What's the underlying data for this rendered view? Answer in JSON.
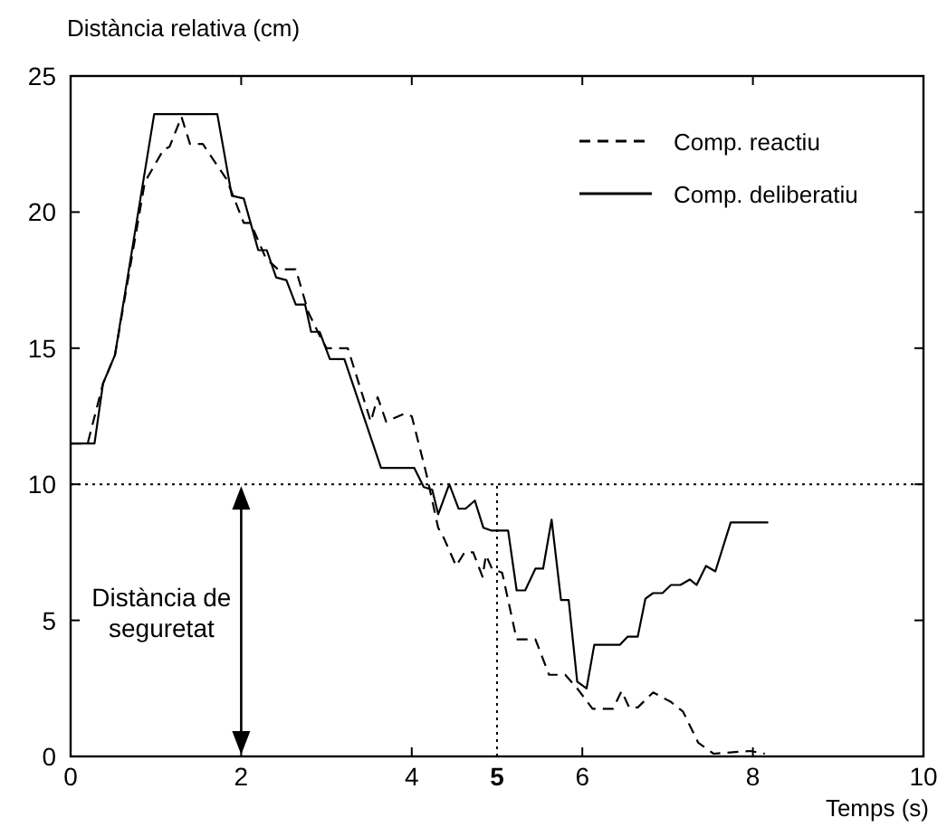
{
  "chart_data": {
    "type": "line",
    "ylabel": "Distància relativa (cm)",
    "xlabel": "Temps (s)",
    "xlim": [
      0,
      10
    ],
    "ylim": [
      0,
      25
    ],
    "xticks": [
      0,
      2,
      4,
      6,
      8,
      10
    ],
    "yticks": [
      0,
      5,
      10,
      15,
      20,
      25
    ],
    "grid": false,
    "legend": "top right",
    "marker": "none",
    "ref_lines": [
      {
        "axis": "y",
        "value": 10,
        "line_style": "dotted",
        "color": "#000000"
      },
      {
        "axis": "x",
        "value": 5,
        "label": "5",
        "line_style": "dotted",
        "color": "#000000"
      }
    ],
    "annotations": [
      "Distància de\nseguretat"
    ],
    "series": [
      {
        "name": "Comp. reactiu",
        "color": "#000000",
        "line_style": "dashed",
        "x": [
          0,
          0.2,
          0.38,
          0.52,
          0.87,
          1.09,
          1.16,
          1.3,
          1.4,
          1.55,
          1.83,
          2.03,
          2.11,
          2.29,
          2.43,
          2.64,
          2.79,
          2.93,
          3.0,
          3.25,
          3.46,
          3.52,
          3.6,
          3.7,
          3.92,
          4.0,
          4.17,
          4.31,
          4.38,
          4.52,
          4.62,
          4.72,
          4.83,
          4.87,
          4.94,
          5.06,
          5.23,
          5.45,
          5.61,
          5.8,
          5.94,
          6.12,
          6.36,
          6.46,
          6.55,
          6.65,
          6.83,
          7.04,
          7.18,
          7.36,
          7.54,
          7.97,
          8.14
        ],
        "values": [
          11.5,
          11.5,
          13.7,
          14.75,
          21.1,
          22.3,
          22.4,
          23.5,
          22.5,
          22.5,
          21.2,
          19.6,
          19.6,
          18.3,
          17.9,
          17.9,
          16.3,
          15.4,
          15.0,
          15.0,
          12.9,
          12.3,
          13.2,
          12.3,
          12.6,
          12.5,
          10.4,
          8.4,
          8.0,
          7.0,
          7.5,
          7.5,
          6.6,
          7.4,
          6.9,
          6.75,
          4.3,
          4.3,
          3.0,
          3.0,
          2.5,
          1.75,
          1.75,
          2.4,
          1.8,
          1.8,
          2.35,
          2.0,
          1.65,
          0.5,
          0.1,
          0.2,
          0.1
        ]
      },
      {
        "name": "Comp. deliberatiu",
        "color": "#000000",
        "line_style": "solid",
        "x": [
          0,
          0.28,
          0.38,
          0.52,
          0.98,
          1.72,
          1.89,
          2.03,
          2.2,
          2.3,
          2.41,
          2.53,
          2.64,
          2.75,
          2.82,
          2.92,
          3.04,
          3.21,
          3.64,
          4.03,
          4.14,
          4.24,
          4.31,
          4.44,
          4.55,
          4.63,
          4.74,
          4.84,
          4.93,
          5.13,
          5.23,
          5.33,
          5.45,
          5.54,
          5.64,
          5.75,
          5.84,
          5.94,
          6.05,
          6.14,
          6.44,
          6.53,
          6.65,
          6.74,
          6.83,
          6.94,
          7.04,
          7.15,
          7.26,
          7.34,
          7.45,
          7.56,
          7.74,
          8.18
        ],
        "values": [
          11.5,
          11.5,
          13.7,
          14.75,
          23.6,
          23.6,
          20.6,
          20.5,
          18.6,
          18.6,
          17.6,
          17.5,
          16.6,
          16.6,
          15.6,
          15.6,
          14.6,
          14.6,
          10.6,
          10.6,
          9.9,
          9.8,
          8.9,
          10.0,
          9.1,
          9.1,
          9.4,
          8.4,
          8.3,
          8.3,
          6.1,
          6.1,
          6.9,
          6.9,
          8.7,
          5.75,
          5.75,
          2.75,
          2.5,
          4.1,
          4.1,
          4.4,
          4.4,
          5.8,
          6.0,
          6.0,
          6.3,
          6.3,
          6.5,
          6.3,
          7.0,
          6.8,
          8.6,
          8.6
        ]
      }
    ]
  }
}
